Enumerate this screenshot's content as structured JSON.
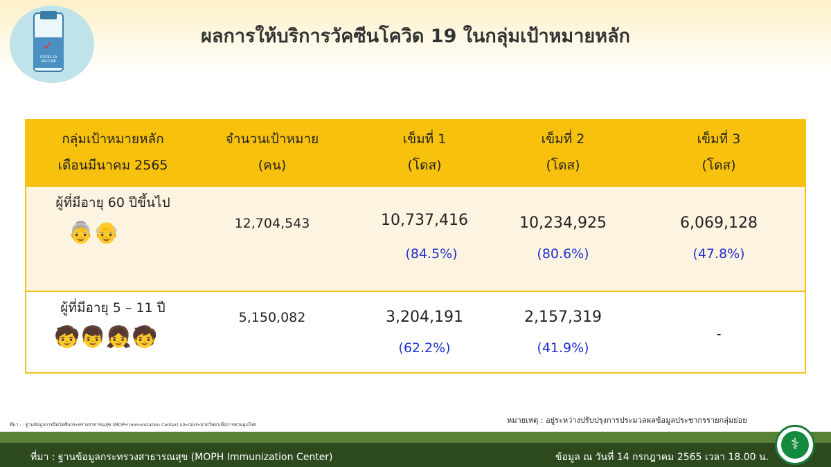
{
  "title": "ผลการให้บริการวัคซีนโควิด 19 ในกลุ่มเป้าหมายหลัก",
  "logo": {
    "text": "COVID-19 VACCINE",
    "icon": "vaccine-bottle-icon"
  },
  "table": {
    "headers": [
      [
        "กลุ่มเป้าหมายหลัก",
        "เดือนมีนาคม 2565"
      ],
      [
        "จำนวนเป้าหมาย",
        "(คน)"
      ],
      [
        "เข็มที่ 1",
        "(โดส)"
      ],
      [
        "เข็มที่ 2",
        "(โดส)"
      ],
      [
        "เข็มที่ 3",
        "(โดส)"
      ]
    ],
    "rows": [
      {
        "group": "ผู้ที่มีอายุ 60 ปีขึ้นไป",
        "icon": "elderly-couple-icon",
        "target": "12,704,543",
        "dose1": "10,737,416",
        "dose1_pct": "(84.5%)",
        "dose2": "10,234,925",
        "dose2_pct": "(80.6%)",
        "dose3": "6,069,128",
        "dose3_pct": "(47.8%)"
      },
      {
        "group": "ผู้ที่มีอายุ 5 – 11 ปี",
        "icon": "children-icon",
        "target": "5,150,082",
        "dose1": "3,204,191",
        "dose1_pct": "(62.2%)",
        "dose2": "2,157,319",
        "dose2_pct": "(41.9%)",
        "dose3": "-"
      }
    ]
  },
  "source_small": "ที่มา : : ฐานข้อมูลการฉีดวัคซีนกระทรวงสาธารณสุข (MOPH Immunization Center) และกองระบาดวิทยาเพื่อการควบคุมโรค",
  "note": "หมายเหตุ : อยู่ระหว่างปรับปรุงการประมวลผลข้อมูลประชากรรายกลุ่มย่อย",
  "footer": {
    "source": "ที่มา : ฐานข้อมูลกระทรวงสาธารณสุข (MOPH  Immunization Center)",
    "date": "ข้อมูล ณ วันที่ 14 กรกฎาคม 2565 เวลา 18.00 น."
  },
  "colors": {
    "header": "#f7c10d",
    "row1": "#fdf3e1",
    "pct": "#1f2fd0",
    "footer_dark": "#2d4a1f",
    "footer_light": "#5a8236"
  }
}
